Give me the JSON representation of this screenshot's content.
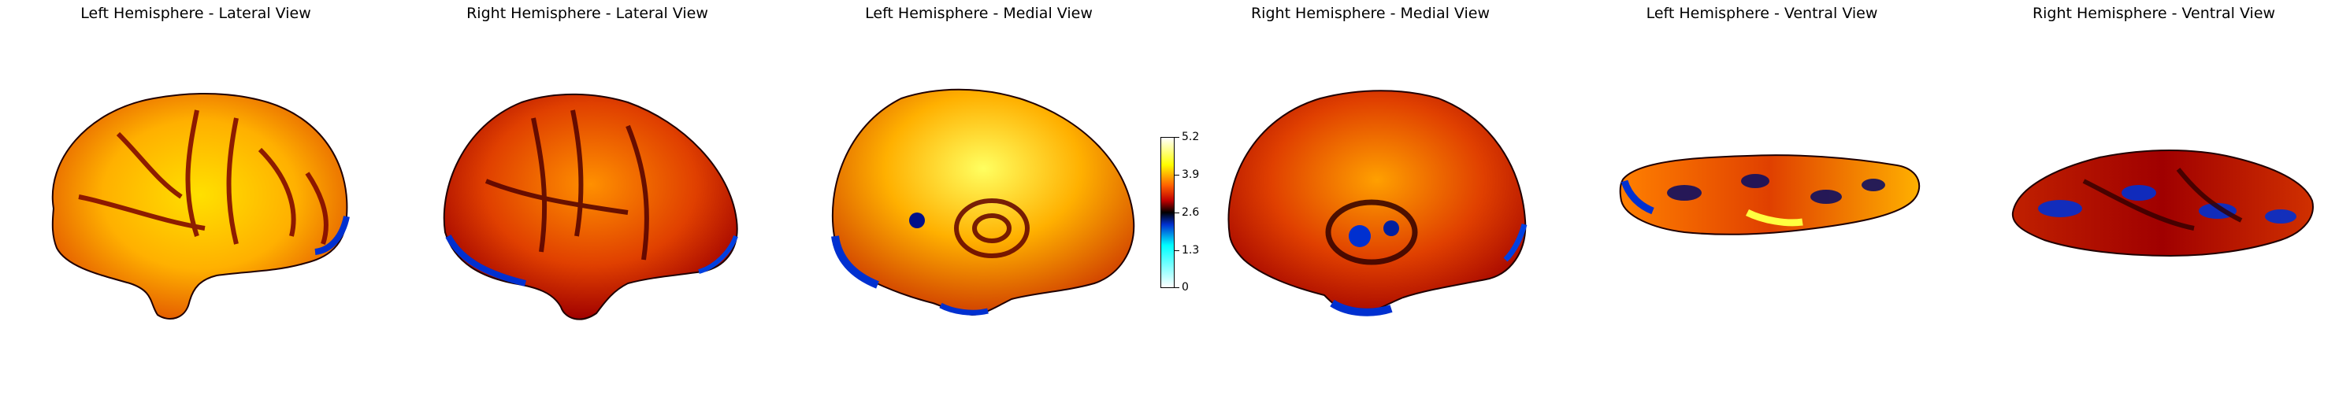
{
  "views": [
    {
      "title": "Left Hemisphere - Lateral View",
      "hemisphere": "left",
      "view": "lateral"
    },
    {
      "title": "Right Hemisphere - Lateral View",
      "hemisphere": "right",
      "view": "lateral"
    },
    {
      "title": "Left Hemisphere - Medial View",
      "hemisphere": "left",
      "view": "medial"
    },
    {
      "title": "Right Hemisphere - Medial View",
      "hemisphere": "right",
      "view": "medial"
    },
    {
      "title": "Left Hemisphere - Ventral View",
      "hemisphere": "left",
      "view": "ventral"
    },
    {
      "title": "Right Hemisphere - Ventral View",
      "hemisphere": "right",
      "view": "ventral"
    }
  ],
  "colorbar": {
    "colormap": "cold_hot",
    "range": [
      0,
      5.2
    ],
    "ticks": [
      "5.2",
      "3.9",
      "2.6",
      "1.3",
      "0"
    ],
    "colors": [
      "#ffffff",
      "#ffff00",
      "#ff6000",
      "#c00000",
      "#000000",
      "#0030d0",
      "#00ffff",
      "#ffffff"
    ]
  }
}
